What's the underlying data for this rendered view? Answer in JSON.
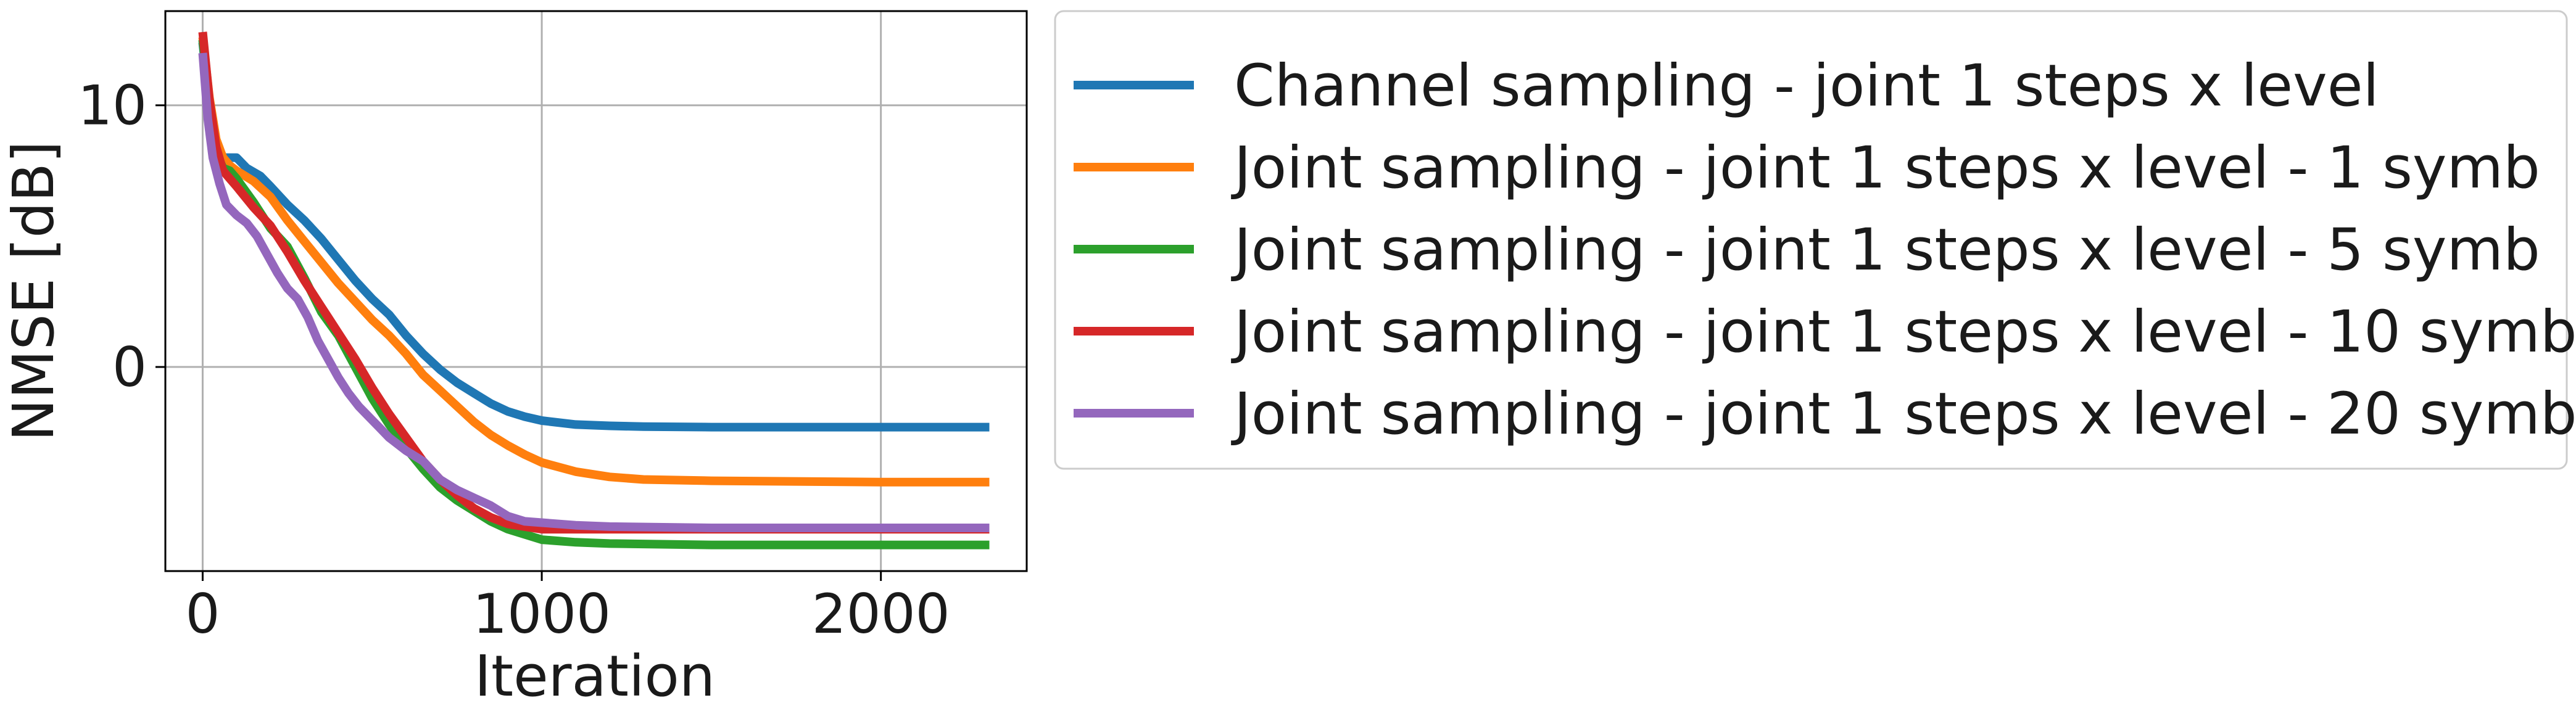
{
  "chart_data": {
    "type": "line",
    "title": "",
    "xlabel": "Iteration",
    "ylabel": "NMSE [dB]",
    "xlim": [
      -110,
      2430
    ],
    "ylim": [
      -7.8,
      13.6
    ],
    "xticks": [
      0,
      1000,
      2000
    ],
    "xtick_labels": [
      "0",
      "1000",
      "2000"
    ],
    "yticks": [
      0,
      10
    ],
    "ytick_labels": [
      "0",
      "10"
    ],
    "grid": true,
    "legend_position": "outside-right",
    "series": [
      {
        "name": "Channel sampling - joint 1 steps x level",
        "color": "#1f77b4",
        "points": [
          [
            0,
            12.4
          ],
          [
            20,
            10.0
          ],
          [
            40,
            8.6
          ],
          [
            60,
            8.0
          ],
          [
            80,
            8.0
          ],
          [
            100,
            8.0
          ],
          [
            130,
            7.6
          ],
          [
            170,
            7.3
          ],
          [
            200,
            6.9
          ],
          [
            250,
            6.2
          ],
          [
            300,
            5.6
          ],
          [
            350,
            4.9
          ],
          [
            400,
            4.1
          ],
          [
            450,
            3.3
          ],
          [
            500,
            2.6
          ],
          [
            550,
            2.0
          ],
          [
            600,
            1.2
          ],
          [
            650,
            0.5
          ],
          [
            700,
            -0.1
          ],
          [
            750,
            -0.6
          ],
          [
            800,
            -1.0
          ],
          [
            850,
            -1.4
          ],
          [
            900,
            -1.7
          ],
          [
            950,
            -1.9
          ],
          [
            1000,
            -2.05
          ],
          [
            1100,
            -2.2
          ],
          [
            1200,
            -2.25
          ],
          [
            1300,
            -2.28
          ],
          [
            1500,
            -2.3
          ],
          [
            1800,
            -2.3
          ],
          [
            2000,
            -2.3
          ],
          [
            2320,
            -2.3
          ]
        ]
      },
      {
        "name": "Joint sampling - joint 1 steps x level -  1 symb",
        "color": "#ff7f0e",
        "points": [
          [
            0,
            12.6
          ],
          [
            20,
            10.3
          ],
          [
            40,
            8.7
          ],
          [
            60,
            8.0
          ],
          [
            80,
            7.7
          ],
          [
            100,
            7.5
          ],
          [
            150,
            7.1
          ],
          [
            200,
            6.5
          ],
          [
            250,
            5.6
          ],
          [
            300,
            4.8
          ],
          [
            350,
            4.0
          ],
          [
            400,
            3.2
          ],
          [
            450,
            2.5
          ],
          [
            500,
            1.8
          ],
          [
            550,
            1.2
          ],
          [
            600,
            0.5
          ],
          [
            650,
            -0.3
          ],
          [
            700,
            -0.9
          ],
          [
            750,
            -1.5
          ],
          [
            800,
            -2.1
          ],
          [
            850,
            -2.6
          ],
          [
            900,
            -3.0
          ],
          [
            950,
            -3.35
          ],
          [
            1000,
            -3.65
          ],
          [
            1100,
            -4.0
          ],
          [
            1200,
            -4.2
          ],
          [
            1300,
            -4.3
          ],
          [
            1500,
            -4.35
          ],
          [
            1800,
            -4.38
          ],
          [
            2000,
            -4.4
          ],
          [
            2320,
            -4.4
          ]
        ]
      },
      {
        "name": "Joint sampling - joint 1 steps x level -  5 symb",
        "color": "#2ca02c",
        "points": [
          [
            0,
            12.5
          ],
          [
            20,
            10.0
          ],
          [
            40,
            8.2
          ],
          [
            60,
            7.6
          ],
          [
            80,
            7.5
          ],
          [
            100,
            7.2
          ],
          [
            150,
            6.3
          ],
          [
            200,
            5.3
          ],
          [
            250,
            4.6
          ],
          [
            300,
            3.4
          ],
          [
            350,
            2.1
          ],
          [
            400,
            1.2
          ],
          [
            450,
            0.0
          ],
          [
            500,
            -1.2
          ],
          [
            550,
            -2.2
          ],
          [
            600,
            -3.1
          ],
          [
            650,
            -3.9
          ],
          [
            700,
            -4.6
          ],
          [
            750,
            -5.1
          ],
          [
            800,
            -5.5
          ],
          [
            850,
            -5.9
          ],
          [
            900,
            -6.2
          ],
          [
            950,
            -6.4
          ],
          [
            1000,
            -6.6
          ],
          [
            1100,
            -6.7
          ],
          [
            1200,
            -6.75
          ],
          [
            1500,
            -6.8
          ],
          [
            1800,
            -6.8
          ],
          [
            2000,
            -6.8
          ],
          [
            2320,
            -6.8
          ]
        ]
      },
      {
        "name": "Joint sampling - joint 1 steps x level - 10 symb",
        "color": "#d62728",
        "points": [
          [
            0,
            12.8
          ],
          [
            20,
            10.2
          ],
          [
            40,
            8.4
          ],
          [
            60,
            7.5
          ],
          [
            80,
            7.2
          ],
          [
            100,
            6.9
          ],
          [
            150,
            6.1
          ],
          [
            200,
            5.4
          ],
          [
            250,
            4.4
          ],
          [
            300,
            3.3
          ],
          [
            350,
            2.3
          ],
          [
            400,
            1.3
          ],
          [
            450,
            0.3
          ],
          [
            500,
            -0.8
          ],
          [
            550,
            -1.8
          ],
          [
            600,
            -2.7
          ],
          [
            650,
            -3.6
          ],
          [
            700,
            -4.3
          ],
          [
            750,
            -4.9
          ],
          [
            800,
            -5.4
          ],
          [
            850,
            -5.75
          ],
          [
            900,
            -6.0
          ],
          [
            950,
            -6.1
          ],
          [
            1000,
            -6.2
          ],
          [
            1100,
            -6.2
          ],
          [
            1200,
            -6.2
          ],
          [
            1500,
            -6.2
          ],
          [
            2000,
            -6.2
          ],
          [
            2320,
            -6.2
          ]
        ]
      },
      {
        "name": "Joint sampling - joint 1 steps x level - 20 symb",
        "color": "#9467bd",
        "points": [
          [
            0,
            12.0
          ],
          [
            15,
            9.5
          ],
          [
            30,
            8.0
          ],
          [
            50,
            7.0
          ],
          [
            70,
            6.2
          ],
          [
            100,
            5.8
          ],
          [
            130,
            5.5
          ],
          [
            160,
            5.0
          ],
          [
            190,
            4.3
          ],
          [
            220,
            3.6
          ],
          [
            250,
            3.0
          ],
          [
            280,
            2.6
          ],
          [
            310,
            1.9
          ],
          [
            340,
            1.0
          ],
          [
            370,
            0.3
          ],
          [
            400,
            -0.4
          ],
          [
            430,
            -1.0
          ],
          [
            460,
            -1.5
          ],
          [
            490,
            -1.9
          ],
          [
            520,
            -2.3
          ],
          [
            550,
            -2.7
          ],
          [
            600,
            -3.2
          ],
          [
            650,
            -3.6
          ],
          [
            700,
            -4.3
          ],
          [
            750,
            -4.7
          ],
          [
            800,
            -5.0
          ],
          [
            850,
            -5.3
          ],
          [
            900,
            -5.7
          ],
          [
            950,
            -5.9
          ],
          [
            1000,
            -5.95
          ],
          [
            1100,
            -6.05
          ],
          [
            1200,
            -6.1
          ],
          [
            1500,
            -6.15
          ],
          [
            2000,
            -6.15
          ],
          [
            2320,
            -6.15
          ]
        ]
      }
    ]
  }
}
